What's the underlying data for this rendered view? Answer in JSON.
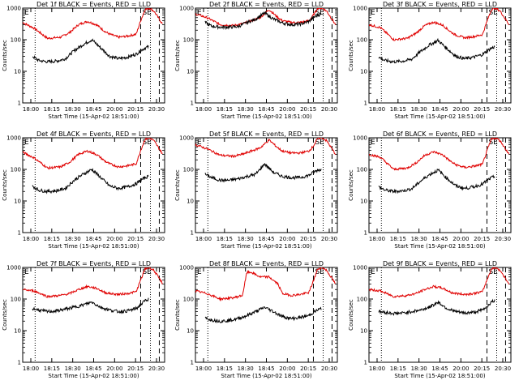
{
  "chart_data": {
    "type": "line",
    "xlabel": "Start Time (15-Apr-02 18:51:00)",
    "ylabel": "Counts/sec",
    "yscale": "log",
    "ylim": [
      1,
      1000
    ],
    "ytick_labels": [
      "1",
      "10",
      "100",
      "1000"
    ],
    "xlim": [
      "17:52",
      "20:32"
    ],
    "xtick_labels": [
      "18:00",
      "18:15",
      "18:30",
      "18:45",
      "20:00",
      "20:15",
      "20:30"
    ],
    "markers": {
      "dotted_lines": [
        "18:06",
        "20:16"
      ],
      "dashed_lines": [
        "20:05",
        "20:26"
      ],
      "left_label": "E",
      "right_label": "SE"
    },
    "series_names": [
      "Events",
      "LLD"
    ],
    "series_colors": {
      "Events": "#000000",
      "LLD": "#e00000"
    },
    "panels": [
      {
        "title": "Det 1f BLACK = Events, RED = LLD",
        "red": {
          "times": [
            "17:52",
            "18:05",
            "18:20",
            "18:35",
            "18:45",
            "18:55",
            "19:05",
            "19:15",
            "19:25",
            "19:30",
            "19:40",
            "19:50",
            "20:00",
            "20:05",
            "20:10",
            "20:15",
            "20:20",
            "20:30"
          ],
          "values": [
            350,
            230,
            110,
            120,
            170,
            300,
            380,
            300,
            180,
            150,
            120,
            130,
            150,
            400,
            900,
            1000,
            800,
            300
          ]
        },
        "black": {
          "times": [
            "18:03",
            "18:10",
            "18:20",
            "18:30",
            "18:40",
            "18:50",
            "19:00",
            "19:10",
            "19:20",
            "19:30",
            "19:40",
            "19:50",
            "20:00",
            "20:05",
            "20:10",
            "20:14"
          ],
          "values": [
            30,
            22,
            20,
            21,
            25,
            45,
            70,
            100,
            55,
            30,
            25,
            28,
            35,
            45,
            55,
            60
          ]
        }
      },
      {
        "title": "Det 2f BLACK = Events, RED = LLD",
        "red": {
          "times": [
            "17:52",
            "18:05",
            "18:20",
            "18:35",
            "18:45",
            "18:55",
            "19:05",
            "19:15",
            "19:25",
            "19:30",
            "19:40",
            "19:50",
            "20:00",
            "20:05",
            "20:10",
            "20:15",
            "20:20",
            "20:30"
          ],
          "values": [
            650,
            500,
            300,
            280,
            320,
            400,
            500,
            900,
            500,
            400,
            350,
            350,
            400,
            600,
            1000,
            1000,
            800,
            300
          ]
        },
        "black": {
          "times": [
            "18:03",
            "18:10",
            "18:20",
            "18:30",
            "18:40",
            "18:50",
            "19:00",
            "19:10",
            "19:20",
            "19:30",
            "19:40",
            "19:50",
            "20:00",
            "20:05",
            "20:10",
            "20:14"
          ],
          "values": [
            350,
            270,
            250,
            250,
            260,
            350,
            450,
            700,
            450,
            340,
            300,
            310,
            380,
            500,
            600,
            650
          ]
        }
      },
      {
        "title": "Det 3f BLACK = Events, RED = LLD",
        "red": {
          "times": [
            "17:52",
            "18:05",
            "18:20",
            "18:35",
            "18:45",
            "18:55",
            "19:05",
            "19:15",
            "19:25",
            "19:30",
            "19:40",
            "19:50",
            "20:00",
            "20:05",
            "20:10",
            "20:15",
            "20:20",
            "20:30"
          ],
          "values": [
            300,
            240,
            100,
            110,
            160,
            280,
            360,
            290,
            170,
            140,
            115,
            125,
            145,
            380,
            900,
            1000,
            800,
            300
          ]
        },
        "black": {
          "times": [
            "18:03",
            "18:10",
            "18:20",
            "18:30",
            "18:40",
            "18:50",
            "19:00",
            "19:10",
            "19:20",
            "19:30",
            "19:40",
            "19:50",
            "20:00",
            "20:05",
            "20:10",
            "20:14"
          ],
          "values": [
            28,
            22,
            20,
            21,
            24,
            42,
            68,
            95,
            52,
            30,
            25,
            28,
            34,
            44,
            54,
            60
          ]
        }
      },
      {
        "title": "Det 4f BLACK = Events, RED = LLD",
        "red": {
          "times": [
            "17:52",
            "18:05",
            "18:20",
            "18:35",
            "18:45",
            "18:55",
            "19:05",
            "19:15",
            "19:25",
            "19:30",
            "19:40",
            "19:50",
            "20:00",
            "20:05",
            "20:10",
            "20:15",
            "20:20",
            "20:30"
          ],
          "values": [
            350,
            230,
            110,
            120,
            170,
            300,
            380,
            300,
            180,
            150,
            120,
            130,
            150,
            400,
            900,
            1000,
            800,
            300
          ]
        },
        "black": {
          "times": [
            "18:03",
            "18:10",
            "18:20",
            "18:30",
            "18:40",
            "18:50",
            "19:00",
            "19:10",
            "19:20",
            "19:30",
            "19:40",
            "19:50",
            "20:00",
            "20:05",
            "20:10",
            "20:14"
          ],
          "values": [
            30,
            22,
            20,
            21,
            25,
            45,
            70,
            100,
            55,
            30,
            25,
            28,
            35,
            45,
            55,
            60
          ]
        }
      },
      {
        "title": "Det 5f BLACK = Events, RED = LLD",
        "red": {
          "times": [
            "17:52",
            "18:05",
            "18:20",
            "18:35",
            "18:45",
            "18:55",
            "19:05",
            "19:15",
            "19:25",
            "19:30",
            "19:40",
            "19:50",
            "20:00",
            "20:05",
            "20:10",
            "20:15",
            "20:20",
            "20:30"
          ],
          "values": [
            600,
            450,
            280,
            260,
            300,
            380,
            480,
            850,
            480,
            380,
            330,
            330,
            380,
            550,
            950,
            1000,
            800,
            300
          ]
        },
        "black": {
          "times": [
            "18:03",
            "18:10",
            "18:20",
            "18:30",
            "18:40",
            "18:50",
            "19:00",
            "19:10",
            "19:20",
            "19:30",
            "19:40",
            "19:50",
            "20:00",
            "20:05",
            "20:10",
            "20:14"
          ],
          "values": [
            70,
            55,
            45,
            45,
            50,
            60,
            70,
            150,
            80,
            60,
            55,
            55,
            65,
            80,
            95,
            100
          ]
        }
      },
      {
        "title": "Det 6f BLACK = Events, RED = LLD",
        "red": {
          "times": [
            "17:52",
            "18:05",
            "18:20",
            "18:35",
            "18:45",
            "18:55",
            "19:05",
            "19:15",
            "19:25",
            "19:30",
            "19:40",
            "19:50",
            "20:00",
            "20:05",
            "20:10",
            "20:15",
            "20:20",
            "20:30"
          ],
          "values": [
            300,
            240,
            100,
            110,
            160,
            280,
            360,
            290,
            170,
            140,
            115,
            125,
            145,
            380,
            900,
            1000,
            800,
            300
          ]
        },
        "black": {
          "times": [
            "18:03",
            "18:10",
            "18:20",
            "18:30",
            "18:40",
            "18:50",
            "19:00",
            "19:10",
            "19:20",
            "19:30",
            "19:40",
            "19:50",
            "20:00",
            "20:05",
            "20:10",
            "20:14"
          ],
          "values": [
            28,
            22,
            20,
            21,
            24,
            42,
            68,
            95,
            52,
            30,
            25,
            28,
            34,
            44,
            54,
            60
          ]
        }
      },
      {
        "title": "Det 7f BLACK = Events, RED = LLD",
        "red": {
          "times": [
            "17:52",
            "18:05",
            "18:20",
            "18:35",
            "18:45",
            "18:55",
            "19:05",
            "19:15",
            "19:25",
            "19:30",
            "19:40",
            "19:50",
            "20:00",
            "20:05",
            "20:10",
            "20:15",
            "20:20",
            "20:30"
          ],
          "values": [
            200,
            180,
            120,
            130,
            150,
            200,
            250,
            220,
            160,
            150,
            140,
            150,
            170,
            400,
            900,
            1000,
            800,
            300
          ]
        },
        "black": {
          "times": [
            "18:03",
            "18:10",
            "18:20",
            "18:30",
            "18:40",
            "18:50",
            "19:00",
            "19:10",
            "19:20",
            "19:30",
            "19:40",
            "19:50",
            "20:00",
            "20:05",
            "20:10",
            "20:14"
          ],
          "values": [
            50,
            45,
            40,
            42,
            48,
            55,
            65,
            80,
            55,
            45,
            40,
            42,
            50,
            65,
            90,
            100
          ]
        }
      },
      {
        "title": "Det 8f BLACK = Events, RED = LLD",
        "red": {
          "times": [
            "17:52",
            "18:05",
            "18:20",
            "18:35",
            "18:45",
            "18:50",
            "18:55",
            "19:05",
            "19:15",
            "19:25",
            "19:30",
            "19:40",
            "19:50",
            "20:00",
            "20:05",
            "20:10",
            "20:15",
            "20:20",
            "20:30"
          ],
          "values": [
            180,
            150,
            100,
            110,
            130,
            700,
            700,
            500,
            500,
            300,
            150,
            130,
            140,
            160,
            380,
            900,
            1000,
            800,
            300
          ]
        },
        "black": {
          "times": [
            "18:03",
            "18:10",
            "18:20",
            "18:30",
            "18:40",
            "18:50",
            "19:00",
            "19:10",
            "19:20",
            "19:30",
            "19:40",
            "19:50",
            "20:00",
            "20:05",
            "20:10",
            "20:14"
          ],
          "values": [
            25,
            22,
            20,
            21,
            24,
            30,
            40,
            55,
            40,
            28,
            24,
            26,
            30,
            38,
            45,
            50
          ]
        }
      },
      {
        "title": "Det 9f BLACK = Events, RED = LLD",
        "red": {
          "times": [
            "17:52",
            "18:05",
            "18:20",
            "18:35",
            "18:45",
            "18:55",
            "19:05",
            "19:15",
            "19:25",
            "19:30",
            "19:40",
            "19:50",
            "20:00",
            "20:05",
            "20:10",
            "20:15",
            "20:20",
            "20:30"
          ],
          "values": [
            200,
            180,
            120,
            130,
            150,
            200,
            250,
            220,
            160,
            150,
            140,
            150,
            170,
            400,
            900,
            1000,
            800,
            300
          ]
        },
        "black": {
          "times": [
            "18:03",
            "18:10",
            "18:20",
            "18:30",
            "18:40",
            "18:50",
            "19:00",
            "19:10",
            "19:20",
            "19:30",
            "19:40",
            "19:50",
            "20:00",
            "20:05",
            "20:10",
            "20:14"
          ],
          "values": [
            40,
            38,
            35,
            36,
            40,
            45,
            55,
            80,
            50,
            40,
            36,
            38,
            45,
            58,
            80,
            90
          ]
        }
      }
    ]
  }
}
